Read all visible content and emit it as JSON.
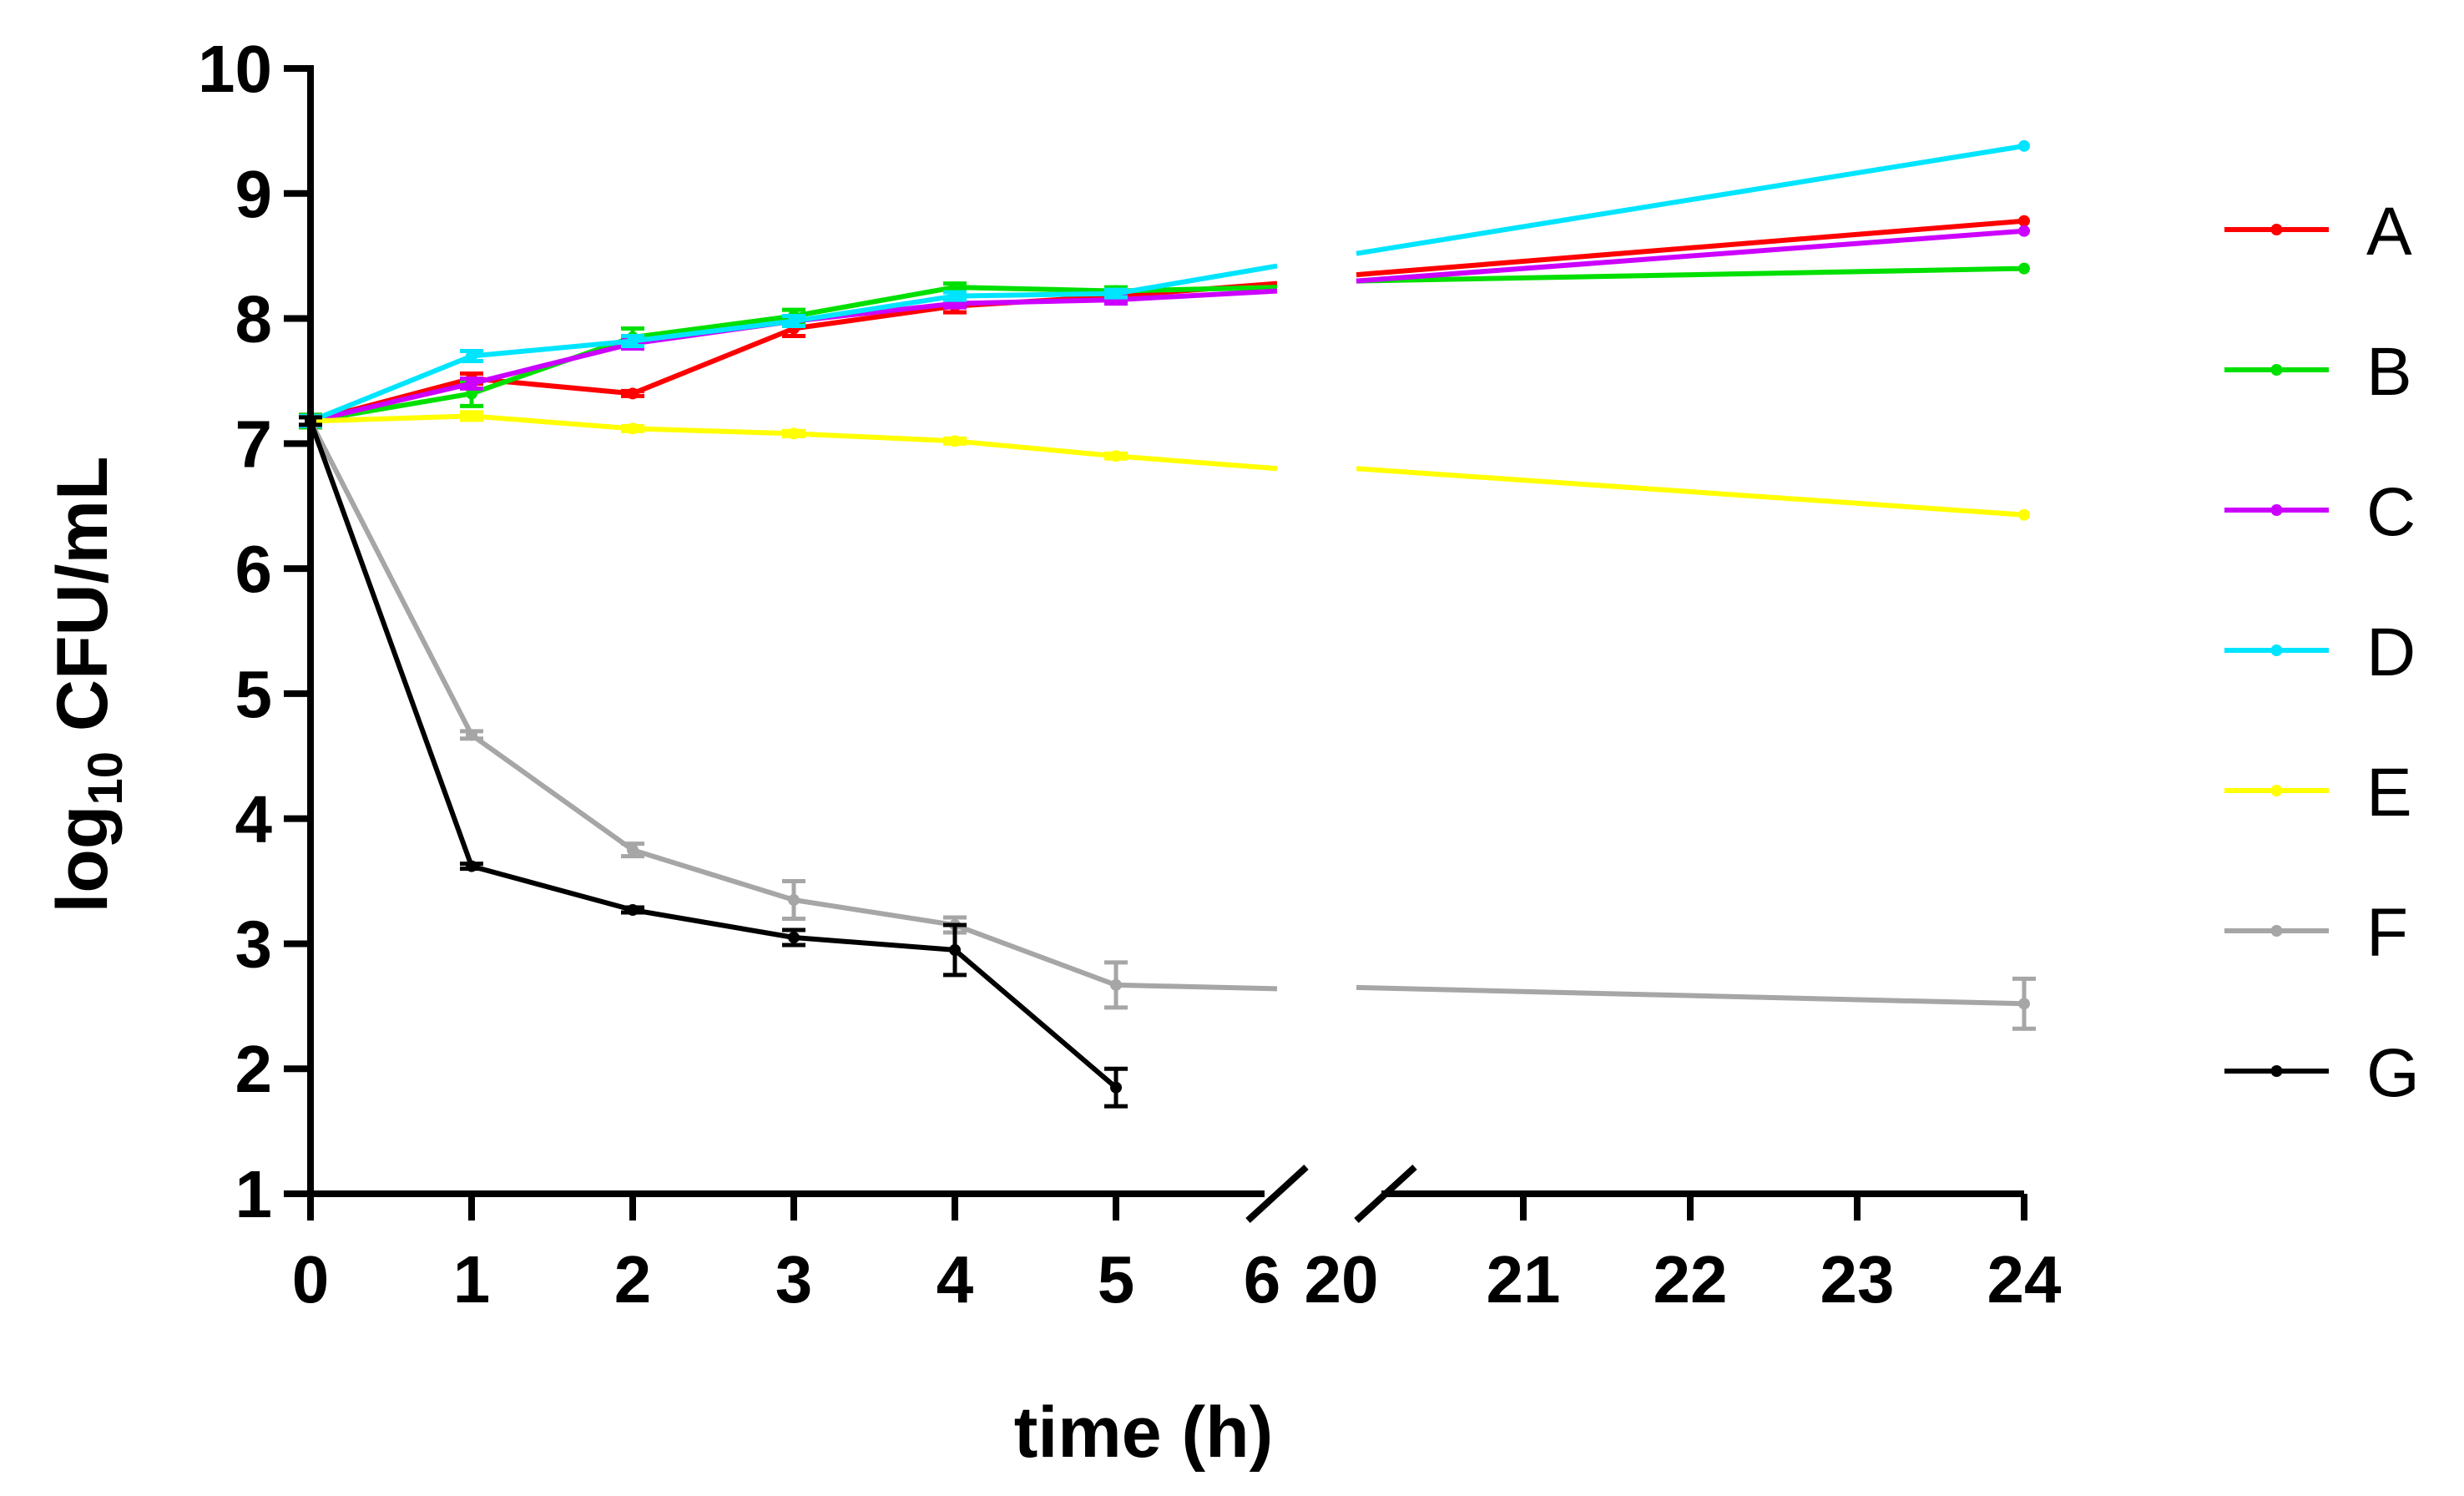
{
  "chart_data": {
    "type": "line",
    "title": "",
    "xlabel": "time (h)",
    "ylabel_main": "log",
    "ylabel_sub": "10",
    "ylabel_rest": " CFU/mL",
    "ylim": [
      1,
      10
    ],
    "yticks": [
      1,
      2,
      3,
      4,
      5,
      6,
      7,
      8,
      9,
      10
    ],
    "x_segments": [
      {
        "range": [
          0,
          6
        ],
        "ticks": [
          0,
          1,
          2,
          3,
          4,
          5,
          6
        ]
      },
      {
        "range": [
          20,
          24
        ],
        "ticks": [
          20,
          21,
          22,
          23,
          24
        ]
      }
    ],
    "axis_break": true,
    "legend_position": "right",
    "series": [
      {
        "name": "A",
        "color": "#ff0000",
        "x": [
          0,
          1,
          2,
          3,
          4,
          5,
          6,
          20,
          24
        ],
        "y": [
          7.18,
          7.52,
          7.4,
          7.92,
          8.1,
          8.18,
          8.28,
          8.35,
          8.78
        ],
        "err": [
          0.05,
          0.04,
          0.02,
          0.06,
          0.05,
          0.03,
          0,
          0,
          0
        ]
      },
      {
        "name": "B",
        "color": "#00e000",
        "x": [
          0,
          1,
          2,
          3,
          4,
          5,
          6,
          20,
          24
        ],
        "y": [
          7.18,
          7.4,
          7.85,
          8.02,
          8.25,
          8.22,
          8.25,
          8.3,
          8.4
        ],
        "err": [
          0.05,
          0.1,
          0.07,
          0.05,
          0.03,
          0.03,
          0,
          0,
          0
        ]
      },
      {
        "name": "C",
        "color": "#cc00ff",
        "x": [
          0,
          1,
          2,
          3,
          4,
          5,
          6,
          20,
          24
        ],
        "y": [
          7.18,
          7.48,
          7.8,
          7.98,
          8.12,
          8.15,
          8.22,
          8.3,
          8.7
        ],
        "err": [
          0.04,
          0.04,
          0.04,
          0.04,
          0.03,
          0.03,
          0,
          0,
          0
        ]
      },
      {
        "name": "D",
        "color": "#00e5ff",
        "x": [
          0,
          1,
          2,
          3,
          4,
          5,
          6,
          20,
          24
        ],
        "y": [
          7.18,
          7.7,
          7.82,
          7.98,
          8.18,
          8.2,
          8.42,
          8.52,
          9.38
        ],
        "err": [
          0.04,
          0.04,
          0.04,
          0.04,
          0.03,
          0.03,
          0,
          0,
          0
        ]
      },
      {
        "name": "E",
        "color": "#ffff00",
        "x": [
          0,
          1,
          2,
          3,
          4,
          5,
          6,
          20,
          24
        ],
        "y": [
          7.18,
          7.22,
          7.12,
          7.08,
          7.02,
          6.9,
          6.8,
          6.8,
          6.43
        ],
        "err": [
          0.03,
          0.03,
          0.02,
          0.02,
          0.02,
          0.02,
          0,
          0,
          0
        ]
      },
      {
        "name": "F",
        "color": "#a6a6a6",
        "x": [
          0,
          1,
          2,
          3,
          4,
          5,
          6,
          20,
          24
        ],
        "y": [
          7.18,
          4.67,
          3.75,
          3.35,
          3.15,
          2.67,
          2.64,
          2.65,
          2.52
        ],
        "err": [
          0.03,
          0.03,
          0.05,
          0.15,
          0.06,
          0.18,
          0,
          0,
          0.2
        ]
      },
      {
        "name": "G",
        "color": "#000000",
        "x": [
          0,
          1,
          2,
          3,
          4,
          5
        ],
        "y": [
          7.18,
          3.62,
          3.27,
          3.05,
          2.95,
          1.85
        ],
        "err": [
          0.03,
          0.02,
          0.02,
          0.06,
          0.2,
          0.15
        ]
      }
    ]
  }
}
